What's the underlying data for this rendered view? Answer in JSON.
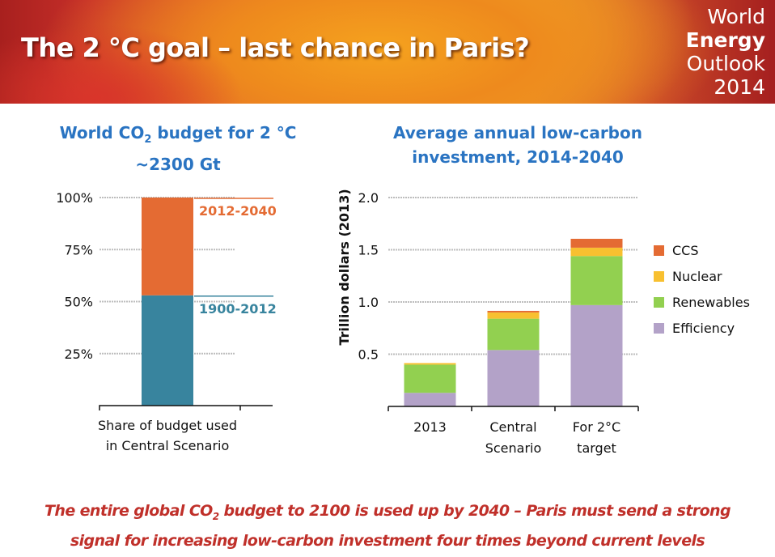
{
  "header": {
    "title": "The 2 °C goal –  last chance in Paris?",
    "brand": {
      "line1": "World",
      "line2": "Energy",
      "line3": "Outlook",
      "line4": "2014"
    }
  },
  "footer": {
    "line1_pre": "The entire global CO",
    "line1_sub": "2",
    "line1_post": " budget to 2100 is used up by 2040  – Paris must send a strong",
    "line2": "signal for increasing low-carbon investment four times beyond current levels"
  },
  "chart_data": [
    {
      "type": "bar",
      "stacked": true,
      "title_pre": "World CO",
      "title_sub": "2",
      "title_post": " budget for 2 °C",
      "subtitle": "~2300 Gt",
      "categories": [
        "Share of budget used in Central Scenario"
      ],
      "category_lines": [
        [
          "Share of budget used",
          "in Central Scenario"
        ]
      ],
      "series": [
        {
          "name": "1900-2012",
          "values": [
            53
          ],
          "color": "#38849e"
        },
        {
          "name": "2012-2040",
          "values": [
            47
          ],
          "color": "#e46b33"
        }
      ],
      "yticks": [
        "25%",
        "50%",
        "75%",
        "100%"
      ],
      "ytick_values": [
        25,
        50,
        75,
        100
      ],
      "ylim": [
        0,
        100
      ],
      "xlabel": "",
      "ylabel": "",
      "grid": true,
      "legend": "inline-right"
    },
    {
      "type": "bar",
      "stacked": true,
      "title_line1": "Average annual low-carbon",
      "title_line2": "investment, 2014-2040",
      "categories": [
        "2013",
        "Central Scenario",
        "For 2°C target"
      ],
      "category_lines": [
        [
          "2013"
        ],
        [
          "Central",
          "Scenario"
        ],
        [
          "For 2°C",
          "target"
        ]
      ],
      "series": [
        {
          "name": "Efficiency",
          "values": [
            0.13,
            0.54,
            0.97
          ],
          "color": "#b3a2c8"
        },
        {
          "name": "Renewables",
          "values": [
            0.27,
            0.3,
            0.47
          ],
          "color": "#92d050"
        },
        {
          "name": "Nuclear",
          "values": [
            0.015,
            0.06,
            0.08
          ],
          "color": "#f8c030"
        },
        {
          "name": "CCS",
          "values": [
            0.0,
            0.015,
            0.085
          ],
          "color": "#e46b33"
        }
      ],
      "legend_order": [
        "CCS",
        "Nuclear",
        "Renewables",
        "Efficiency"
      ],
      "yticks": [
        "0.5",
        "1.0",
        "1.5",
        "2.0"
      ],
      "ytick_values": [
        0.5,
        1.0,
        1.5,
        2.0
      ],
      "ylim": [
        0,
        2.0
      ],
      "xlabel": "",
      "ylabel": "Trillion dollars (2013)",
      "grid": true,
      "legend": "right"
    }
  ]
}
